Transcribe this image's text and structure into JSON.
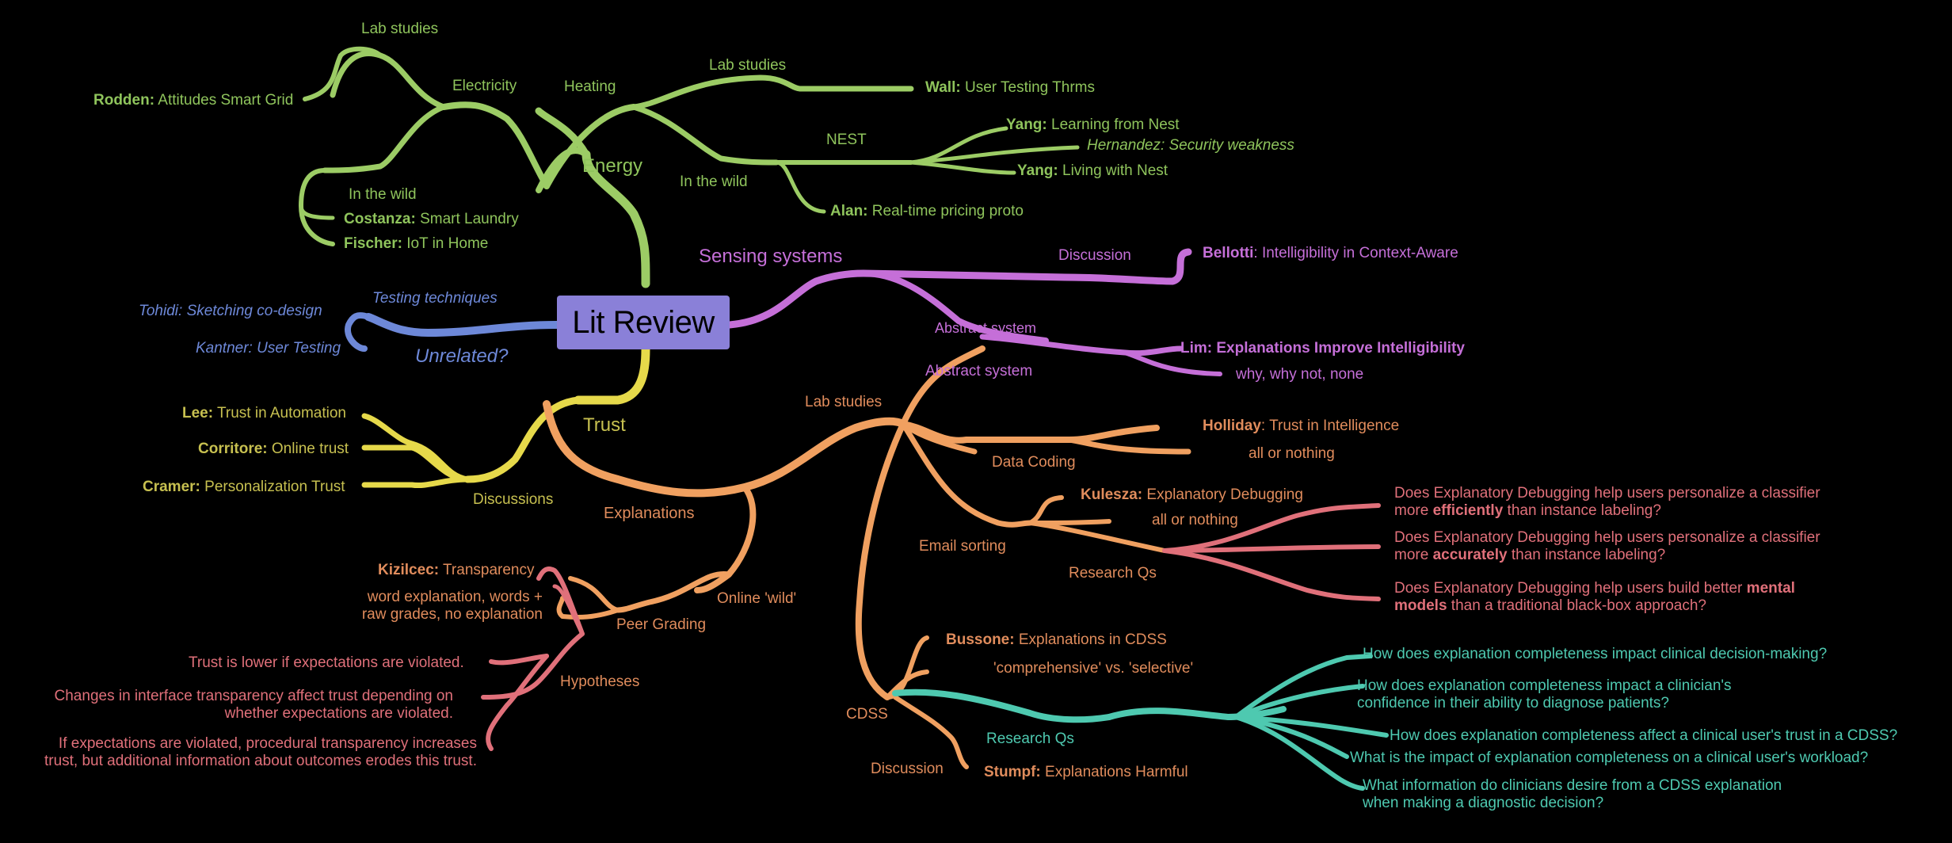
{
  "center": "Lit Review",
  "colors": {
    "energy": "#9ccc65",
    "sensing": "#c56fd8",
    "testing": "#6d88d8",
    "trust": "#c7c050",
    "explanations": "#e08c5c",
    "hypotheses": "#e0707a",
    "cdss": "#4ec9b0",
    "center": "#8a80d8"
  },
  "energy": {
    "label": "Energy",
    "heating": {
      "label": "Heating",
      "lab_studies": "Lab studies",
      "wall": {
        "author": "Wall:",
        "title": " User Testing Thrms"
      },
      "in_the_wild": "In the wild",
      "nest": "NEST",
      "yang1": {
        "author": "Yang:",
        "title": " Learning from Nest"
      },
      "hernandez": "Hernandez: Security weakness",
      "yang2": {
        "author": "Yang:",
        "title": " Living with Nest"
      },
      "alan": {
        "author": "Alan:",
        "title": " Real-time pricing proto"
      }
    },
    "electricity": {
      "label": "Electricity",
      "lab_studies": "Lab studies",
      "rodden": {
        "author": "Rodden:",
        "title": " Attitudes Smart Grid"
      },
      "in_the_wild": "In the wild",
      "costanza": {
        "author": "Costanza:",
        "title": " Smart Laundry"
      },
      "fischer": {
        "author": "Fischer:",
        "title": " IoT in Home"
      }
    }
  },
  "testing": {
    "label": "Testing techniques",
    "tohidi": "Tohidi: Sketching co-design",
    "kantner": "Kantner: User Testing",
    "unrelated": "Unrelated?"
  },
  "sensing": {
    "label": "Sensing systems",
    "discussion": "Discussion",
    "bellotti": {
      "author": "Bellotti",
      "title": ": Intelligibility in Context-Aware"
    },
    "abstract_system_1": "Abstract system",
    "abstract_system_2": "Abstract system",
    "lim": {
      "author": "Lim:",
      "title": " Explanations Improve Intelligibility"
    },
    "why_why_not": "why, why not, none"
  },
  "trust": {
    "label": "Trust",
    "discussions": "Discussions",
    "lee": {
      "author": "Lee:",
      "title": " Trust in Automation"
    },
    "corritore": {
      "author": "Corritore:",
      "title": " Online trust"
    },
    "cramer": {
      "author": "Cramer:",
      "title": " Personalization Trust"
    }
  },
  "explanations": {
    "label": "Explanations",
    "lab_studies": "Lab studies",
    "data_coding": "Data Coding",
    "holliday": {
      "author": "Holliday",
      "title": ": Trust in Intelligence"
    },
    "all_or_nothing_1": "all or nothing",
    "email_sorting": "Email sorting",
    "kulesza": {
      "author": "Kulesza:",
      "title": " Explanatory Debugging"
    },
    "all_or_nothing_2": "all or nothing",
    "research_qs": "Research Qs",
    "rq1": {
      "a": "Does Explanatory Debugging help users personalize a classifier",
      "b1": "more ",
      "b2": "efficiently",
      "b3": " than instance labeling?"
    },
    "rq2": {
      "a": "Does Explanatory Debugging help users personalize a classifier",
      "b1": "more ",
      "b2": "accurately",
      "b3": " than instance labeling?"
    },
    "rq3": {
      "a1": "Does Explanatory Debugging help users build better ",
      "a2": "mental",
      "b1": "models",
      "b2": " than a traditional black-box approach?"
    },
    "online_wild": "Online 'wild'",
    "peer_grading": "Peer Grading",
    "kizilcec": {
      "author": "Kizilcec:",
      "title": " Transparency"
    },
    "word_expl_1": "word explanation, words +",
    "word_expl_2": "raw grades, no explanation",
    "hypotheses": "Hypotheses",
    "h1": "Trust is lower if expectations are violated.",
    "h2_1": "Changes in interface transparency affect trust depending on",
    "h2_2": "whether expectations are violated.",
    "h3_1": "If expectations are violated, procedural transparency increases",
    "h3_2": "trust, but additional information about outcomes erodes this trust."
  },
  "cdss": {
    "label": "CDSS",
    "bussone": {
      "author": "Bussone:",
      "title": " Explanations in CDSS"
    },
    "comprehensive": "'comprehensive' vs. 'selective'",
    "research_qs": "Research Qs",
    "discussion": "Discussion",
    "stumpf": {
      "author": "Stumpf:",
      "title": " Explanations Harmful"
    },
    "q1": "How does explanation completeness impact clinical decision-making?",
    "q2_1": "How does explanation completeness impact a clinician's",
    "q2_2": "confidence in their ability to diagnose patients?",
    "q3": "How does explanation completeness affect a clinical user's trust in a CDSS?",
    "q4": "What is the impact of explanation completeness on a clinical user's workload?",
    "q5_1": "What information do clinicians desire from a CDSS explanation",
    "q5_2": "when making a diagnostic decision?"
  }
}
